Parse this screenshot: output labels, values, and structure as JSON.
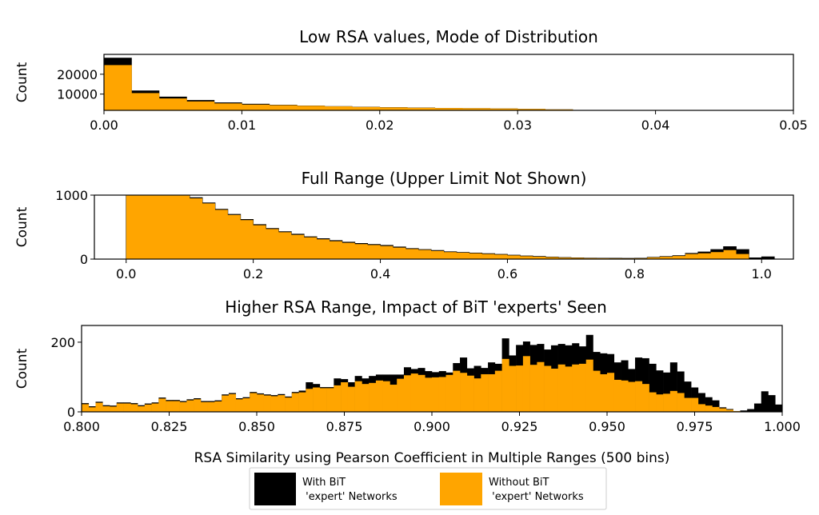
{
  "colors": {
    "with": "#000000",
    "without": "#FFA500"
  },
  "xlabel": "RSA Similarity using Pearson Coefficient in Multiple Ranges (500 bins)",
  "legend": {
    "placement": "bottom-center",
    "entries": [
      {
        "line1": "With BiT",
        "line2": " 'expert' Networks",
        "color": "#000000"
      },
      {
        "line1": "Without BiT",
        "line2": " 'expert' Networks",
        "color": "#FFA500"
      }
    ]
  },
  "chart_data": [
    {
      "type": "bar",
      "kind": "histogram",
      "title": "Low RSA values, Mode of Distribution",
      "ylabel": "Count",
      "xlim": [
        0,
        0.05
      ],
      "ylim": [
        1800,
        30000
      ],
      "xticks": [
        0,
        0.01,
        0.02,
        0.03,
        0.04,
        0.05
      ],
      "xtick_labels": [
        "0.00",
        "0.01",
        "0.02",
        "0.03",
        "0.04",
        "0.05"
      ],
      "yticks": [
        10000,
        20000
      ],
      "ytick_labels": [
        "10000",
        "20000"
      ],
      "bin_start": 0,
      "bin_width": 0.002,
      "series": [
        {
          "name": "With BiT 'expert' Networks",
          "values": [
            28300,
            11800,
            8700,
            7000,
            5800,
            5100,
            4600,
            4200,
            3900,
            3600,
            3400,
            3200,
            3000,
            2900,
            2750,
            2550,
            2300
          ]
        },
        {
          "name": "Without BiT 'expert' Networks",
          "values": [
            24600,
            10500,
            7800,
            6300,
            5300,
            4700,
            4400,
            4100,
            3800,
            3500,
            3300,
            3100,
            2950,
            2850,
            2700,
            2500,
            2250
          ]
        }
      ]
    },
    {
      "type": "area",
      "kind": "histogram",
      "title": "Full Range (Upper Limit Not Shown)",
      "ylabel": "Count",
      "xlim": [
        -0.05,
        1.05
      ],
      "ylim": [
        0,
        1000
      ],
      "xticks": [
        0,
        0.2,
        0.4,
        0.6,
        0.8,
        1.0
      ],
      "xtick_labels": [
        "0.0",
        "0.2",
        "0.4",
        "0.6",
        "0.8",
        "1.0"
      ],
      "yticks": [
        0,
        1000
      ],
      "ytick_labels": [
        "0",
        "1000"
      ],
      "x": [
        0,
        0.02,
        0.04,
        0.06,
        0.08,
        0.1,
        0.12,
        0.14,
        0.16,
        0.18,
        0.2,
        0.22,
        0.24,
        0.26,
        0.28,
        0.3,
        0.32,
        0.34,
        0.36,
        0.38,
        0.4,
        0.42,
        0.44,
        0.46,
        0.48,
        0.5,
        0.52,
        0.54,
        0.56,
        0.58,
        0.6,
        0.62,
        0.64,
        0.66,
        0.68,
        0.7,
        0.72,
        0.74,
        0.76,
        0.78,
        0.8,
        0.82,
        0.84,
        0.86,
        0.88,
        0.9,
        0.92,
        0.94,
        0.96,
        0.98,
        1.0
      ],
      "series": [
        {
          "name": "With BiT 'expert' Networks",
          "values": [
            1000,
            1000,
            1000,
            1000,
            1000,
            960,
            880,
            780,
            700,
            620,
            540,
            480,
            430,
            390,
            350,
            320,
            290,
            265,
            245,
            230,
            215,
            190,
            165,
            150,
            135,
            115,
            105,
            95,
            85,
            75,
            62,
            50,
            42,
            32,
            25,
            20,
            16,
            14,
            13,
            12,
            13,
            28,
            40,
            55,
            90,
            112,
            150,
            195,
            150,
            20,
            35
          ]
        },
        {
          "name": "Without BiT 'expert' Networks",
          "values": [
            1000,
            1000,
            1000,
            1000,
            1000,
            950,
            870,
            770,
            690,
            610,
            530,
            470,
            420,
            380,
            340,
            310,
            280,
            255,
            235,
            220,
            205,
            180,
            158,
            143,
            128,
            110,
            100,
            90,
            80,
            70,
            58,
            46,
            38,
            29,
            22,
            18,
            14,
            12,
            11,
            10,
            11,
            25,
            36,
            48,
            80,
            90,
            110,
            140,
            80,
            5,
            0
          ]
        }
      ]
    },
    {
      "type": "bar",
      "kind": "histogram",
      "title": "Higher RSA Range, Impact of BiT 'experts' Seen",
      "ylabel": "Count",
      "xlim": [
        0.8,
        1.0
      ],
      "ylim": [
        0,
        248
      ],
      "xticks": [
        0.8,
        0.825,
        0.85,
        0.875,
        0.9,
        0.925,
        0.95,
        0.975,
        1.0
      ],
      "xtick_labels": [
        "0.800",
        "0.825",
        "0.850",
        "0.875",
        "0.900",
        "0.925",
        "0.950",
        "0.975",
        "1.000"
      ],
      "yticks": [
        0,
        200
      ],
      "ytick_labels": [
        "0",
        "200"
      ],
      "bin_start": 0.8,
      "bin_width": 0.002,
      "series": [
        {
          "name": "With BiT 'expert' Networks",
          "values": [
            25,
            16,
            29,
            19,
            18,
            27,
            27,
            25,
            19,
            24,
            27,
            41,
            34,
            34,
            31,
            36,
            39,
            31,
            31,
            33,
            50,
            54,
            39,
            42,
            57,
            53,
            50,
            48,
            51,
            44,
            57,
            61,
            85,
            80,
            71,
            71,
            96,
            94,
            85,
            103,
            96,
            103,
            107,
            107,
            107,
            107,
            128,
            123,
            126,
            117,
            114,
            117,
            113,
            140,
            156,
            125,
            132,
            126,
            142,
            138,
            211,
            162,
            192,
            202,
            192,
            195,
            179,
            191,
            195,
            191,
            197,
            188,
            221,
            172,
            168,
            166,
            142,
            148,
            123,
            156,
            154,
            138,
            119,
            113,
            142,
            116,
            87,
            70,
            54,
            42,
            33,
            13,
            8,
            2,
            4,
            8,
            24,
            59,
            48,
            21
          ]
        },
        {
          "name": "Without BiT 'expert' Networks",
          "values": [
            22,
            13,
            26,
            16,
            15,
            24,
            24,
            22,
            16,
            21,
            24,
            38,
            31,
            31,
            28,
            33,
            36,
            28,
            28,
            30,
            47,
            51,
            36,
            39,
            54,
            50,
            47,
            45,
            48,
            41,
            54,
            56,
            66,
            70,
            68,
            68,
            76,
            85,
            72,
            88,
            80,
            83,
            90,
            88,
            78,
            95,
            105,
            110,
            106,
            98,
            99,
            100,
            106,
            118,
            112,
            104,
            96,
            108,
            108,
            118,
            152,
            132,
            133,
            160,
            135,
            143,
            132,
            124,
            136,
            130,
            136,
            138,
            150,
            118,
            108,
            112,
            92,
            90,
            86,
            88,
            80,
            56,
            50,
            52,
            60,
            54,
            40,
            40,
            22,
            18,
            14,
            10,
            6,
            2,
            0,
            0,
            1,
            1,
            0,
            0
          ]
        }
      ]
    }
  ]
}
